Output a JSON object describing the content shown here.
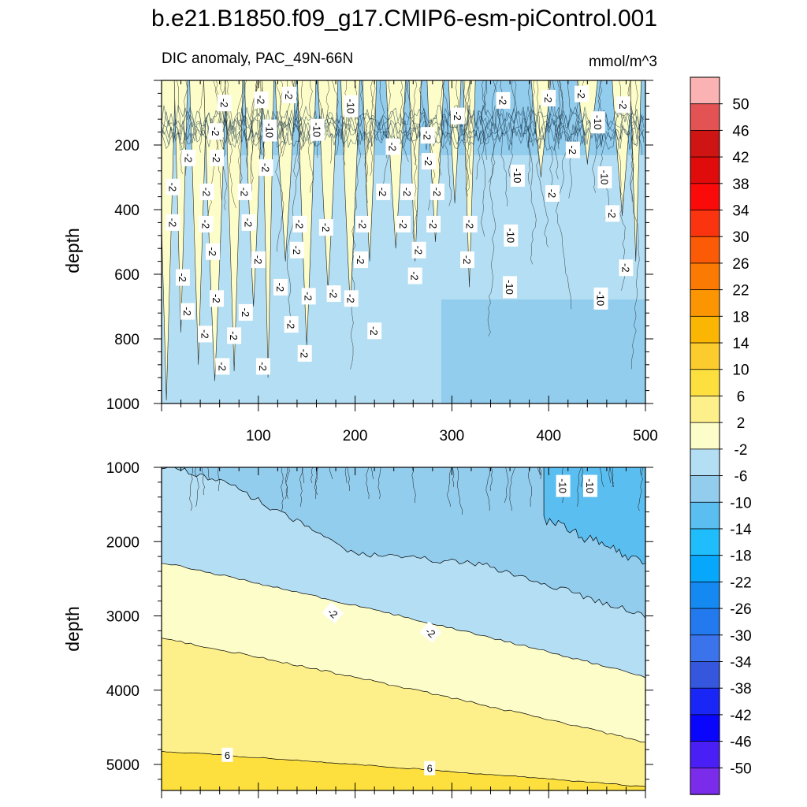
{
  "colors": {
    "band_m2_p2": "#fdfdc9",
    "band_p2_p6": "#fdf08a",
    "band_p6_p10": "#fde03e",
    "band_m6_m2": "#b3def3",
    "band_m10_m6": "#92cdee",
    "band_m14_m10": "#5bbef0",
    "axis": "#000000",
    "contour": "#000000"
  },
  "chart_data": [
    {
      "type": "contour",
      "panel": "upper",
      "title": "b.e21.B1850.f09_g17.CMIP6-esm-piControl.001",
      "subtitle_left": "DIC anomaly, PAC_49N-66N",
      "subtitle_right": "mmol/m^3",
      "xlabel": "",
      "ylabel": "depth",
      "xlim": [
        0,
        500
      ],
      "ylim": [
        1000,
        0
      ],
      "xticks": [
        "100",
        "200",
        "300",
        "400",
        "500"
      ],
      "yticks": [
        "200",
        "400",
        "600",
        "800",
        "1000"
      ],
      "contour_labels": [
        {
          "text": "-2",
          "x": 65,
          "y": 70
        },
        {
          "text": "-2",
          "x": 103,
          "y": 60
        },
        {
          "text": "-2",
          "x": 132,
          "y": 45
        },
        {
          "text": "-10",
          "x": 196,
          "y": 80
        },
        {
          "text": "-2",
          "x": 353,
          "y": 62
        },
        {
          "text": "-2",
          "x": 400,
          "y": 55
        },
        {
          "text": "-2",
          "x": 434,
          "y": 42
        },
        {
          "text": "-2",
          "x": 477,
          "y": 75
        },
        {
          "text": "-2",
          "x": 306,
          "y": 110
        },
        {
          "text": "-10",
          "x": 112,
          "y": 155
        },
        {
          "text": "-10",
          "x": 161,
          "y": 153
        },
        {
          "text": "-2",
          "x": 56,
          "y": 158
        },
        {
          "text": "-2",
          "x": 239,
          "y": 205
        },
        {
          "text": "-2",
          "x": 275,
          "y": 170
        },
        {
          "text": "-10",
          "x": 451,
          "y": 130
        },
        {
          "text": "-2",
          "x": 425,
          "y": 215
        },
        {
          "text": "-2",
          "x": 28,
          "y": 240
        },
        {
          "text": "-2",
          "x": 57,
          "y": 240
        },
        {
          "text": "-2",
          "x": 108,
          "y": 270
        },
        {
          "text": "-2",
          "x": 276,
          "y": 250
        },
        {
          "text": "-10",
          "x": 368,
          "y": 295
        },
        {
          "text": "-10",
          "x": 458,
          "y": 300
        },
        {
          "text": "-2",
          "x": 12,
          "y": 330
        },
        {
          "text": "-2",
          "x": 47,
          "y": 345
        },
        {
          "text": "-2",
          "x": 86,
          "y": 345
        },
        {
          "text": "-2",
          "x": 229,
          "y": 345
        },
        {
          "text": "-2",
          "x": 254,
          "y": 345
        },
        {
          "text": "-2",
          "x": 285,
          "y": 345
        },
        {
          "text": "-2",
          "x": 404,
          "y": 350
        },
        {
          "text": "-2",
          "x": 466,
          "y": 412
        },
        {
          "text": "-2",
          "x": 12,
          "y": 440
        },
        {
          "text": "-2",
          "x": 46,
          "y": 445
        },
        {
          "text": "-2",
          "x": 90,
          "y": 440
        },
        {
          "text": "-2",
          "x": 143,
          "y": 445
        },
        {
          "text": "-2",
          "x": 170,
          "y": 455
        },
        {
          "text": "-2",
          "x": 208,
          "y": 445
        },
        {
          "text": "-2",
          "x": 250,
          "y": 445
        },
        {
          "text": "-2",
          "x": 281,
          "y": 445
        },
        {
          "text": "-2",
          "x": 319,
          "y": 445
        },
        {
          "text": "-10",
          "x": 361,
          "y": 480
        },
        {
          "text": "-2",
          "x": 53,
          "y": 530
        },
        {
          "text": "-2",
          "x": 140,
          "y": 525
        },
        {
          "text": "-2",
          "x": 100,
          "y": 555
        },
        {
          "text": "-2",
          "x": 206,
          "y": 555
        },
        {
          "text": "-2",
          "x": 266,
          "y": 525
        },
        {
          "text": "-2",
          "x": 316,
          "y": 555
        },
        {
          "text": "-2",
          "x": 480,
          "y": 580
        },
        {
          "text": "-2",
          "x": 22,
          "y": 610
        },
        {
          "text": "-2",
          "x": 262,
          "y": 605
        },
        {
          "text": "-10",
          "x": 360,
          "y": 640
        },
        {
          "text": "-2",
          "x": 123,
          "y": 640
        },
        {
          "text": "-2",
          "x": 178,
          "y": 660
        },
        {
          "text": "-2",
          "x": 152,
          "y": 668
        },
        {
          "text": "-2",
          "x": 57,
          "y": 675
        },
        {
          "text": "-2",
          "x": 196,
          "y": 675
        },
        {
          "text": "-10",
          "x": 454,
          "y": 675
        },
        {
          "text": "-2",
          "x": 27,
          "y": 715
        },
        {
          "text": "-2",
          "x": 87,
          "y": 718
        },
        {
          "text": "-2",
          "x": 134,
          "y": 755
        },
        {
          "text": "-2",
          "x": 220,
          "y": 775
        },
        {
          "text": "-2",
          "x": 45,
          "y": 785
        },
        {
          "text": "-2",
          "x": 75,
          "y": 790
        },
        {
          "text": "-2",
          "x": 148,
          "y": 845
        },
        {
          "text": "-2",
          "x": 63,
          "y": 885
        },
        {
          "text": "-2",
          "x": 105,
          "y": 885
        }
      ]
    },
    {
      "type": "contour",
      "panel": "lower",
      "xlabel": "",
      "ylabel": "depth",
      "xlim": [
        0,
        500
      ],
      "ylim": [
        5350,
        1000
      ],
      "yticks": [
        "1000",
        "2000",
        "3000",
        "4000",
        "5000"
      ],
      "contour_levels": [
        {
          "value": -10,
          "y_at_x0": null,
          "note": "starts x~395 at 1000",
          "y_at_x500": 2300
        },
        {
          "value": -6,
          "y_at_x0": 1000,
          "y_at_x500": 3000
        },
        {
          "value": -2,
          "y_at_x0": 2280,
          "y_at_x500": 3820
        },
        {
          "value": 2,
          "y_at_x0": 3300,
          "y_at_x500": 4700
        },
        {
          "value": 6,
          "y_at_x0": 4820,
          "y_at_x500": 5300
        }
      ],
      "contour_labels": [
        {
          "text": "-10",
          "x": 415,
          "y": 1250
        },
        {
          "text": "-10",
          "x": 443,
          "y": 1250
        },
        {
          "text": "-2",
          "x": 177,
          "y": 2960
        },
        {
          "text": "-2",
          "x": 278,
          "y": 3220
        },
        {
          "text": "6",
          "x": 68,
          "y": 4870
        },
        {
          "text": "6",
          "x": 277,
          "y": 5050
        }
      ]
    },
    {
      "type": "colorbar",
      "labels": [
        "50",
        "46",
        "42",
        "38",
        "34",
        "30",
        "26",
        "22",
        "18",
        "14",
        "10",
        "6",
        "2",
        "-2",
        "-6",
        "-10",
        "-14",
        "-18",
        "-22",
        "-26",
        "-30",
        "-34",
        "-38",
        "-42",
        "-46",
        "-50"
      ],
      "colors": [
        "#fbb2b2",
        "#e35353",
        "#cf1414",
        "#e00b0b",
        "#fb0a0a",
        "#fb3410",
        "#fb5a06",
        "#fb7a03",
        "#fb9602",
        "#fbb503",
        "#fccb2e",
        "#fde03e",
        "#fdf08a",
        "#fdfdc9",
        "#b3def3",
        "#92cdee",
        "#5bbef0",
        "#1fbdfc",
        "#07a8fb",
        "#1489f2",
        "#2379ee",
        "#3a73ec",
        "#3557dd",
        "#1a26f5",
        "#0a05fb",
        "#4a1ff6",
        "#7b2bea"
      ]
    }
  ]
}
